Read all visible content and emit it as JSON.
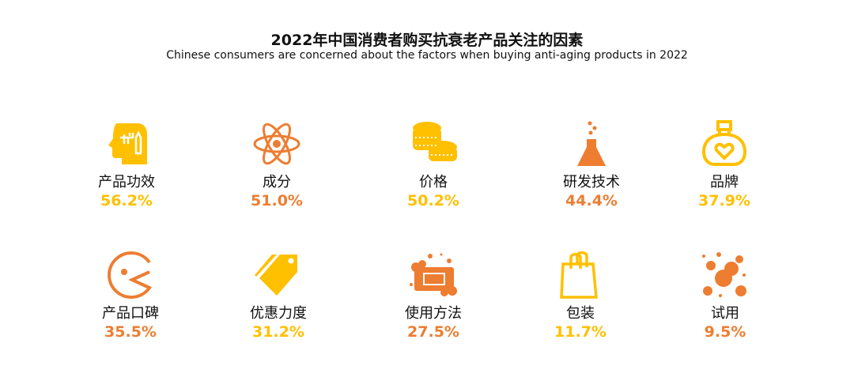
{
  "title": "2022年中国消费者购买抗衰老产品关注的因素",
  "subtitle": "Chinese consumers are concerned about the factors when buying anti-aging products in 2022",
  "colors": {
    "yellow": "#FFC000",
    "orange": "#ED7D31"
  },
  "chart_data": {
    "type": "table",
    "title": "2022年中国消费者购买抗衰老产品关注的因素",
    "categories": [
      "产品功效",
      "成分",
      "价格",
      "研发技术",
      "品牌",
      "产品口碑",
      "优惠力度",
      "使用方法",
      "包装",
      "试用"
    ],
    "values": [
      56.2,
      51.0,
      50.2,
      44.4,
      37.9,
      35.5,
      31.2,
      27.5,
      11.7,
      9.5
    ],
    "unit": "%"
  },
  "items": [
    {
      "label": "产品功效",
      "pct": "56.2%",
      "icon": "head-idea-icon",
      "color": "#FFC000"
    },
    {
      "label": "成分",
      "pct": "51.0%",
      "icon": "atom-icon",
      "color": "#ED7D31"
    },
    {
      "label": "价格",
      "pct": "50.2%",
      "icon": "coins-icon",
      "color": "#FFC000"
    },
    {
      "label": "研发技术",
      "pct": "44.4%",
      "icon": "flask-icon",
      "color": "#ED7D31"
    },
    {
      "label": "品牌",
      "pct": "37.9%",
      "icon": "perfume-bottle-icon",
      "color": "#FFC000"
    },
    {
      "label": "产品口碑",
      "pct": "35.5%",
      "icon": "pacman-mouth-icon",
      "color": "#ED7D31"
    },
    {
      "label": "优惠力度",
      "pct": "31.2%",
      "icon": "price-tag-icon",
      "color": "#FFC000"
    },
    {
      "label": "使用方法",
      "pct": "27.5%",
      "icon": "soap-icon",
      "color": "#ED7D31"
    },
    {
      "label": "包装",
      "pct": "11.7%",
      "icon": "shopping-bag-icon",
      "color": "#FFC000"
    },
    {
      "label": "试用",
      "pct": "9.5%",
      "icon": "bubbles-icon",
      "color": "#ED7D31"
    }
  ]
}
